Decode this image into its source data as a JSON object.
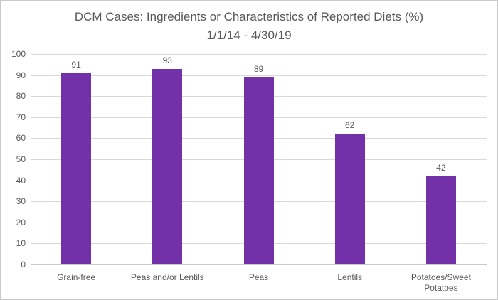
{
  "chart_data": {
    "type": "bar",
    "title_line1": "DCM Cases: Ingredients or Characteristics of Reported Diets (%)",
    "title_line2": "1/1/14 - 4/30/19",
    "categories": [
      "Grain-free",
      "Peas and/or Lentils",
      "Peas",
      "Lentils",
      "Potatoes/Sweet Potatoes"
    ],
    "values": [
      91,
      93,
      89,
      62,
      42
    ],
    "xlabel": "",
    "ylabel": "",
    "ylim": [
      0,
      100
    ],
    "yticks": [
      0,
      10,
      20,
      30,
      40,
      50,
      60,
      70,
      80,
      90,
      100
    ],
    "grid": true,
    "legend_position": "none",
    "data_labels": [
      91,
      93,
      89,
      62,
      42
    ]
  },
  "colors": {
    "bar": "#7231A8",
    "gridline": "#D9D9D9",
    "axis_line": "#C9C9C9",
    "label_text": "#595959",
    "title_text": "#595959",
    "frame_border": "#C9C9C9",
    "background": "#FFFFFF"
  }
}
